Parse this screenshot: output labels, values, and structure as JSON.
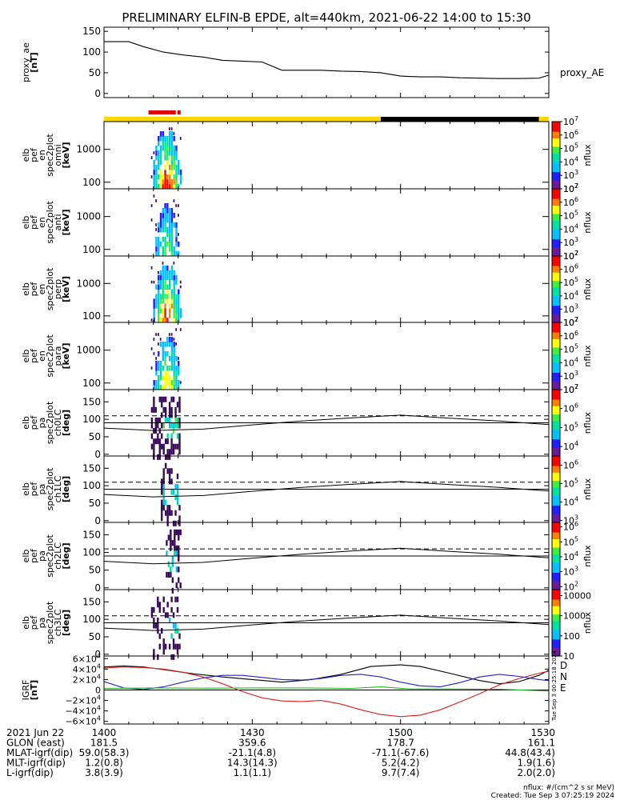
{
  "chart_data": {
    "type": "spectrogram-stack",
    "title": "PRELIMINARY ELFIN-B EPDE, alt=440km, 2021-06-22 14:00 to 15:30",
    "time_range": [
      "2021-06-22 14:00",
      "2021-06-22 15:30"
    ],
    "panels": [
      {
        "id": "proxy_ae",
        "kind": "line",
        "ylabel": [
          "proxy_ae",
          "[nT]"
        ],
        "ylim": [
          -10,
          160
        ],
        "yticks": [
          0,
          50,
          100,
          150
        ],
        "legend": "proxy_AE",
        "series": [
          {
            "name": "proxy_AE",
            "color": "#000000",
            "x": [
              0,
              5,
              8,
              12,
              16,
              20,
              24,
              28,
              32,
              36,
              40,
              44,
              48,
              52,
              56,
              60,
              64,
              68,
              72,
              76,
              80,
              84,
              88,
              90
            ],
            "y": [
              125,
              125,
              113,
              100,
              93,
              88,
              80,
              78,
              76,
              56,
              56,
              56,
              54,
              53,
              50,
              42,
              40,
              40,
              38,
              37,
              36,
              36,
              37,
              44
            ]
          }
        ]
      },
      {
        "id": "spec-omni",
        "kind": "energy",
        "ylabel": [
          "elb",
          "pef",
          "en",
          "spec2plot",
          "omni",
          "[keV]"
        ],
        "yticks": [
          100,
          1000
        ],
        "ymin": 63,
        "ymax": 7000,
        "cbar": {
          "label": "nflux",
          "ticks": [
            "10^7",
            "10^6",
            "10^5",
            "10^4",
            "10^3",
            "10^2"
          ],
          "log": [
            2,
            7
          ]
        }
      },
      {
        "id": "spec-anti",
        "kind": "energy",
        "ylabel": [
          "elb",
          "pef",
          "en",
          "spec2plot",
          "anti",
          "[keV]"
        ],
        "yticks": [
          100,
          1000
        ],
        "ymin": 63,
        "ymax": 7000,
        "cbar": {
          "label": "nflux",
          "ticks": [
            "10^7",
            "10^6",
            "10^5",
            "10^4",
            "10^3",
            "10^2"
          ],
          "log": [
            2,
            7
          ]
        }
      },
      {
        "id": "spec-perp",
        "kind": "energy",
        "ylabel": [
          "elb",
          "pef",
          "en",
          "spec2plot",
          "perp",
          "[keV]"
        ],
        "yticks": [
          100,
          1000
        ],
        "ymin": 63,
        "ymax": 7000,
        "cbar": {
          "label": "nflux",
          "ticks": [
            "10^7",
            "10^6",
            "10^5",
            "10^4",
            "10^3",
            "10^2"
          ],
          "log": [
            2,
            7
          ]
        }
      },
      {
        "id": "spec-para",
        "kind": "energy",
        "ylabel": [
          "elb",
          "pef",
          "en",
          "spec2plot",
          "para",
          "[keV]"
        ],
        "yticks": [
          100,
          1000
        ],
        "ymin": 63,
        "ymax": 7000,
        "cbar": {
          "label": "nflux",
          "ticks": [
            "10^7",
            "10^6",
            "10^5",
            "10^4",
            "10^3",
            "10^2"
          ],
          "log": [
            2,
            7
          ]
        }
      },
      {
        "id": "pa-ch0",
        "kind": "pitch",
        "ylabel": [
          "elb",
          "pef",
          "pa",
          "spec2plot",
          "ch0LC",
          "[deg]"
        ],
        "ylim": [
          -5,
          185
        ],
        "yticks": [
          0,
          50,
          100,
          150
        ],
        "cbar": {
          "label": "nflux",
          "ticks": [
            "10^7",
            "10^6",
            "10^5",
            "10^4"
          ],
          "log": [
            3.5,
            7
          ]
        }
      },
      {
        "id": "pa-ch1",
        "kind": "pitch",
        "ylabel": [
          "elb",
          "pef",
          "pa",
          "spec2plot",
          "ch1LC",
          "[deg]"
        ],
        "ylim": [
          -5,
          185
        ],
        "yticks": [
          0,
          50,
          100,
          150
        ],
        "cbar": {
          "label": "nflux",
          "ticks": [
            "10^6",
            "10^5",
            "10^4",
            "10^3"
          ],
          "log": [
            2.9,
            6.5
          ]
        }
      },
      {
        "id": "pa-ch2",
        "kind": "pitch",
        "ylabel": [
          "elb",
          "pef",
          "pa",
          "spec2plot",
          "ch2LC",
          "[deg]"
        ],
        "ylim": [
          -5,
          185
        ],
        "yticks": [
          0,
          50,
          100,
          150
        ],
        "cbar": {
          "label": "nflux",
          "ticks": [
            "10^6",
            "10^5",
            "10^4",
            "10^3",
            "10^2"
          ],
          "log": [
            1.8,
            6.3
          ]
        }
      },
      {
        "id": "pa-ch3",
        "kind": "pitch",
        "ylabel": [
          "elb",
          "pef",
          "pa",
          "spec2plot",
          "ch3LC",
          "[deg]"
        ],
        "ylim": [
          -5,
          185
        ],
        "yticks": [
          0,
          50,
          100,
          150
        ],
        "cbar": {
          "label": "nflux",
          "ticks": [
            "10000",
            "1000",
            "100",
            "10"
          ],
          "log": [
            1,
            4.3
          ]
        }
      },
      {
        "id": "igrf",
        "kind": "line",
        "ylabel": [
          "IGRF",
          "[nT]"
        ],
        "ylim": [
          -65000,
          65000
        ],
        "yticks": [
          "6×10^4",
          "4×10^4",
          "2×10^4",
          "0",
          "−2×10^4",
          "−4×10^4",
          "−6×10^4"
        ],
        "legend_entries": [
          {
            "label": "D",
            "color": "#e0201b"
          },
          {
            "label": "N",
            "color": "#2222cc"
          },
          {
            "label": "E",
            "color": "#22bb22"
          }
        ],
        "series": [
          {
            "name": "total",
            "color": "#000000",
            "x": [
              0,
              4,
              8,
              12,
              18,
              24,
              30,
              36,
              42,
              48,
              54,
              60,
              64,
              70,
              76,
              80,
              84,
              88,
              90
            ],
            "y": [
              44000,
              46000,
              44000,
              39000,
              31000,
              25000,
              20000,
              15000,
              20000,
              30000,
              45000,
              48000,
              45000,
              32000,
              18000,
              12000,
              16000,
              28000,
              38000
            ]
          },
          {
            "name": "D",
            "color": "#e0201b",
            "x": [
              0,
              4,
              8,
              12,
              16,
              20,
              24,
              28,
              32,
              36,
              40,
              44,
              48,
              52,
              56,
              60,
              64,
              68,
              72,
              76,
              80,
              84,
              88,
              90
            ],
            "y": [
              42000,
              44000,
              43000,
              40000,
              34000,
              25000,
              12000,
              -3000,
              -15000,
              -21000,
              -22000,
              -20000,
              -27000,
              -38000,
              -47000,
              -51000,
              -48000,
              -38000,
              -23000,
              -7000,
              10000,
              22000,
              32000,
              36000
            ]
          },
          {
            "name": "N",
            "color": "#2222cc",
            "x": [
              0,
              4,
              8,
              12,
              16,
              20,
              24,
              28,
              32,
              36,
              40,
              44,
              48,
              52,
              56,
              60,
              64,
              68,
              72,
              76,
              80,
              84,
              88,
              90
            ],
            "y": [
              16000,
              4000,
              1000,
              6000,
              15000,
              23000,
              28000,
              28000,
              24000,
              20000,
              19000,
              22000,
              28000,
              30000,
              25000,
              15000,
              8000,
              6000,
              14000,
              25000,
              30000,
              26000,
              20000,
              18000
            ]
          },
          {
            "name": "E",
            "color": "#22bb22",
            "x": [
              0,
              10,
              20,
              30,
              40,
              50,
              56,
              62,
              70,
              80,
              90
            ],
            "y": [
              3000,
              4000,
              3500,
              4000,
              4000,
              3000,
              6000,
              2000,
              2000,
              1500,
              -2000
            ]
          }
        ]
      }
    ],
    "status_bar": [
      {
        "from": 0,
        "to": 56,
        "color": "#ffd800"
      },
      {
        "from": 56,
        "to": 88,
        "color": "#000000"
      },
      {
        "from": 88,
        "to": 90,
        "color": "#ffd800"
      }
    ],
    "science_zone_marker": {
      "from": 9,
      "to": 15.5,
      "color": "#e00000"
    },
    "burst_window": [
      9.5,
      15.5
    ],
    "pitch_curves": {
      "x": [
        0,
        10,
        20,
        30,
        40,
        50,
        60,
        70,
        80,
        90
      ],
      "loss_cone": [
        75,
        68,
        72,
        84,
        95,
        104,
        112,
        103,
        95,
        85
      ],
      "upper_dashed": 110,
      "mid_line": 90
    },
    "side_stamp": "Tue Sep  3 00:25:18 2024",
    "footer": {
      "rows": [
        {
          "label": "2021 Jun 22",
          "values": [
            "1400",
            "1430",
            "1500",
            "1530"
          ]
        },
        {
          "label": "GLON (east)",
          "values": [
            "181.5",
            "359.6",
            "178.7",
            "161.1"
          ]
        },
        {
          "label": "MLAT-igrf(dip)",
          "values": [
            "59.0(58.3)",
            "-21.1(4.8)",
            "-71.1(-67.6)",
            "44.8(43.4)"
          ]
        },
        {
          "label": "MLT-igrf(dip)",
          "values": [
            "1.2(0.8)",
            "14.3(14.3)",
            "5.2(4.2)",
            "1.9(1.6)"
          ]
        },
        {
          "label": "L-igrf(dip)",
          "values": [
            "3.8(3.9)",
            "1.1(1.1)",
            "9.7(7.4)",
            "2.0(2.0)"
          ]
        }
      ],
      "units_note": "nflux: #/(cm^2 s sr MeV)",
      "created": "Created: Tue Sep  3 07:25:19 2024"
    }
  }
}
